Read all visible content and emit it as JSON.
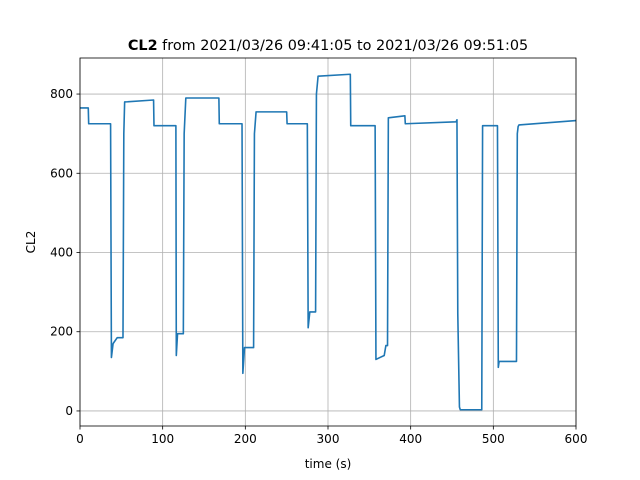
{
  "chart_data": {
    "type": "line",
    "title": {
      "bold": "CL2",
      "rest": "from 2021/03/26 09:41:05 to 2021/03/26 09:51:05"
    },
    "xlabel": "time (s)",
    "ylabel": "CL2",
    "x": [
      0,
      10,
      10.5,
      37,
      38,
      40,
      45,
      52,
      53,
      54,
      89,
      89.5,
      116,
      116.5,
      118,
      125,
      126,
      128,
      168,
      168.5,
      196,
      197,
      199,
      210,
      211,
      213,
      250,
      250.5,
      275,
      276,
      278,
      285,
      286,
      288,
      327,
      327.5,
      357,
      358,
      368,
      370,
      372,
      373,
      393,
      393.5,
      455,
      456,
      457,
      459,
      460,
      486,
      487,
      505,
      506,
      507,
      528,
      529,
      530,
      531,
      600
    ],
    "series": [
      {
        "name": "CL2",
        "color": "#1f77b4",
        "values": [
          765,
          765,
          725,
          725,
          135,
          170,
          185,
          185,
          700,
          780,
          785,
          720,
          720,
          140,
          195,
          195,
          700,
          790,
          790,
          725,
          725,
          95,
          160,
          160,
          700,
          755,
          755,
          725,
          725,
          210,
          250,
          250,
          800,
          845,
          850,
          720,
          720,
          130,
          140,
          165,
          165,
          740,
          745,
          725,
          730,
          735,
          245,
          10,
          3,
          3,
          720,
          720,
          110,
          125,
          125,
          700,
          718,
          722,
          733
        ]
      }
    ],
    "xlim": [
      0,
      600
    ],
    "ylim": [
      -38,
      891
    ],
    "xticks": [
      0,
      100,
      200,
      300,
      400,
      500,
      600
    ],
    "yticks": [
      0,
      200,
      400,
      600,
      800
    ],
    "grid": true
  }
}
